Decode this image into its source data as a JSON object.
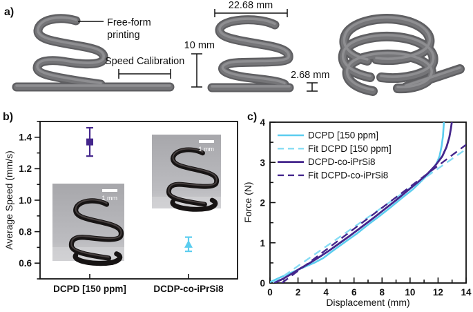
{
  "accent_colors": {
    "purple": "#44268c",
    "cyan": "#5bcdef",
    "cyan_fit": "#86dcf4",
    "spring_gray": "#6d6d70"
  },
  "panels": {
    "a": {
      "label": "a)",
      "annotations": {
        "freeform_line1": "Free-form",
        "freeform_line2": "printing",
        "speed_calibration": "Speed Calibration",
        "dim_width": "22.68 mm",
        "dim_height": "10 mm",
        "dim_pitch": "2.68 mm"
      }
    },
    "b": {
      "label": "b)",
      "ylabel": "Average Speed (mm/s)"
    },
    "c": {
      "label": "c)",
      "xlabel": "Displacement (mm)",
      "ylabel": "Force (N)"
    }
  },
  "chart_data": [
    {
      "panel": "b",
      "type": "scatter",
      "title": "",
      "xlabel": "",
      "ylabel": "Average Speed (mm/s)",
      "ylim": [
        0.5,
        1.5
      ],
      "grid": false,
      "yaxis": {
        "major": [
          0.6,
          0.8,
          1.0,
          1.2,
          1.4
        ],
        "labels": [
          "0.6",
          "0.8",
          "1.0",
          "1.2",
          "1.4"
        ],
        "minor": [
          0.5,
          0.7,
          0.9,
          1.1,
          1.3,
          1.5
        ]
      },
      "categories": [
        "DCPD [150 ppm]",
        "DCDP-co-iPrSi8"
      ],
      "points": [
        {
          "category": "DCPD [150 ppm]",
          "value": 1.37,
          "error": 0.09,
          "marker": "square",
          "color": "#44268c"
        },
        {
          "category": "DCDP-co-iPrSi8",
          "value": 0.72,
          "error": 0.045,
          "marker": "triangle",
          "color": "#5bcdef"
        }
      ],
      "insets": [
        {
          "scale_label": "1 mm"
        },
        {
          "scale_label": "1 mm"
        }
      ]
    },
    {
      "panel": "c",
      "type": "line",
      "title": "",
      "xlabel": "Displacement (mm)",
      "ylabel": "Force (N)",
      "xlim": [
        0,
        14
      ],
      "ylim": [
        0,
        4
      ],
      "grid": false,
      "legend_position": "top-left",
      "xaxis": {
        "major": [
          0,
          2,
          4,
          6,
          8,
          10,
          12,
          14
        ],
        "labels": [
          "0",
          "2",
          "4",
          "6",
          "8",
          "10",
          "12",
          "14"
        ],
        "minor": [
          1,
          3,
          5,
          7,
          9,
          11,
          13
        ]
      },
      "yaxis": {
        "major": [
          0,
          1,
          2,
          3,
          4
        ],
        "labels": [
          "0",
          "1",
          "2",
          "3",
          "4"
        ],
        "minor": [
          0.5,
          1.5,
          2.5,
          3.5
        ]
      },
      "series": [
        {
          "name": "DCPD [150 ppm]",
          "style": "solid",
          "color": "#5bcdef",
          "width": 2.6,
          "points": [
            [
              0,
              0.02
            ],
            [
              0.6,
              0.12
            ],
            [
              1.2,
              0.21
            ],
            [
              2,
              0.33
            ],
            [
              2.6,
              0.42
            ],
            [
              3.2,
              0.51
            ],
            [
              3.8,
              0.62
            ],
            [
              4.4,
              0.78
            ],
            [
              5,
              0.93
            ],
            [
              5.6,
              1.08
            ],
            [
              6.2,
              1.23
            ],
            [
              7,
              1.45
            ],
            [
              7.8,
              1.66
            ],
            [
              8.6,
              1.88
            ],
            [
              9.4,
              2.11
            ],
            [
              10.2,
              2.33
            ],
            [
              11,
              2.6
            ],
            [
              11.5,
              2.78
            ],
            [
              11.9,
              2.98
            ],
            [
              12.1,
              3.15
            ],
            [
              12.25,
              3.4
            ],
            [
              12.35,
              3.65
            ],
            [
              12.42,
              4.0
            ]
          ]
        },
        {
          "name": "Fit DCPD [150 ppm]",
          "style": "dashed",
          "color": "#86dcf4",
          "width": 2.4,
          "points": [
            [
              0.25,
              0
            ],
            [
              14,
              3.33
            ]
          ]
        },
        {
          "name": "DCPD-co-iPrSi8",
          "style": "solid",
          "color": "#44268c",
          "width": 2.8,
          "points": [
            [
              0.3,
              0.0
            ],
            [
              0.9,
              0.1
            ],
            [
              1.5,
              0.22
            ],
            [
              2.1,
              0.35
            ],
            [
              2.8,
              0.49
            ],
            [
              3.5,
              0.64
            ],
            [
              4.2,
              0.8
            ],
            [
              5,
              1.0
            ],
            [
              5.8,
              1.2
            ],
            [
              6.6,
              1.41
            ],
            [
              7.4,
              1.62
            ],
            [
              8.2,
              1.84
            ],
            [
              9,
              2.06
            ],
            [
              9.8,
              2.29
            ],
            [
              10.6,
              2.52
            ],
            [
              11.2,
              2.7
            ],
            [
              11.8,
              2.92
            ],
            [
              12.3,
              3.15
            ],
            [
              12.6,
              3.38
            ],
            [
              12.8,
              3.62
            ],
            [
              12.92,
              3.85
            ],
            [
              12.98,
              4.0
            ]
          ]
        },
        {
          "name": "Fit DCPD-co-iPrSi8",
          "style": "dashed",
          "color": "#44268c",
          "width": 2.4,
          "points": [
            [
              0.85,
              0
            ],
            [
              14,
              3.44
            ]
          ]
        }
      ]
    }
  ]
}
